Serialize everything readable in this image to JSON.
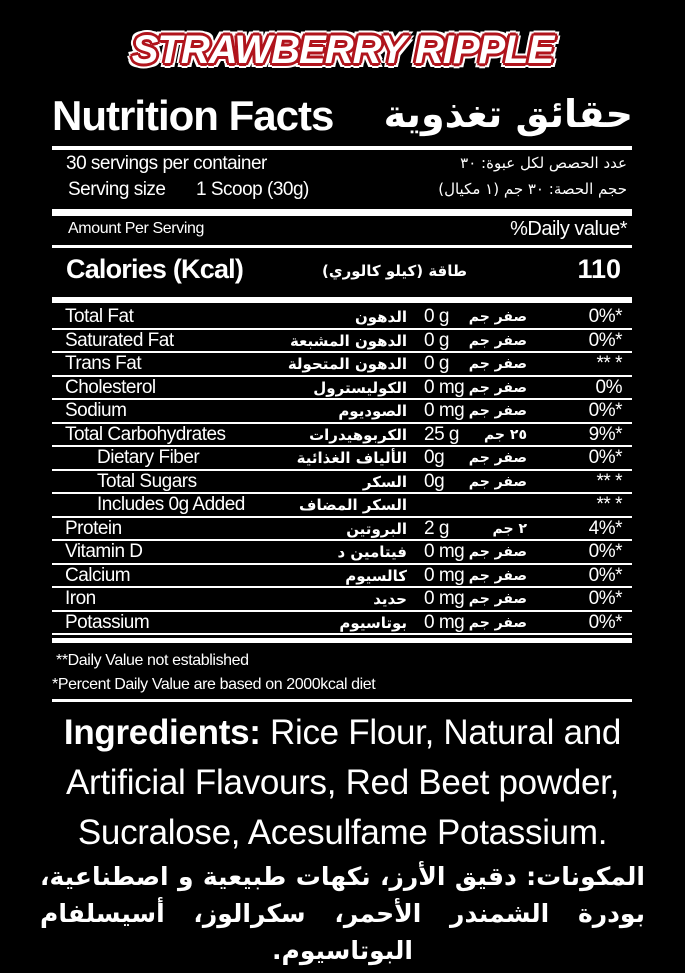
{
  "header": {
    "product": "STRAWBERRY RIPPLE",
    "title_en": "Nutrition Facts",
    "title_ar": "حقائق تغذوية"
  },
  "serving": {
    "per_container_en": "30 servings per container",
    "per_container_ar": "عدد الحصص لكل عبوة: ٣٠",
    "size_label_en": "Serving size",
    "size_value_en": "1 Scoop (30g)",
    "size_ar": "حجم الحصة: ٣٠ جم (١ مكيال)"
  },
  "amount_per_serving": "Amount Per Serving",
  "daily_value_header": "%Daily value*",
  "calories": {
    "label_en": "Calories (Kcal)",
    "label_ar": "طاقة (كيلو كالوري)",
    "value": "110"
  },
  "nutrients": [
    {
      "en": "Total Fat",
      "ar": "الدهون",
      "amount": "0 g",
      "amount_ar": "صفر جم",
      "dv": "0%*",
      "indent": 0
    },
    {
      "en": "Saturated Fat",
      "ar": "الدهون المشبعة",
      "amount": "0 g",
      "amount_ar": "صفر جم",
      "dv": "0%*",
      "indent": 0
    },
    {
      "en": "Trans Fat",
      "ar": "الدهون المتحولة",
      "amount": "0 g",
      "amount_ar": "صفر جم",
      "dv": "** *",
      "indent": 0
    },
    {
      "en": "Cholesterol",
      "ar": "الكوليسترول",
      "amount": "0 mg",
      "amount_ar": "صفر جم",
      "dv": "0%",
      "indent": 0
    },
    {
      "en": "Sodium",
      "ar": "الصوديوم",
      "amount": "0 mg",
      "amount_ar": "صفر جم",
      "dv": "0%*",
      "indent": 0
    },
    {
      "en": "Total Carbohydrates",
      "ar": "الكربوهيدرات",
      "amount": "25 g",
      "amount_ar": "٢٥ جم",
      "dv": "9%*",
      "indent": 0
    },
    {
      "en": "Dietary Fiber",
      "ar": "الألياف الغذائية",
      "amount": "0g",
      "amount_ar": "صفر جم",
      "dv": "0%*",
      "indent": 2
    },
    {
      "en": "Total Sugars",
      "ar": "السكر",
      "amount": "0g",
      "amount_ar": "صفر جم",
      "dv": "** *",
      "indent": 1
    },
    {
      "en": "Includes 0g Added",
      "ar": "السكر المضاف",
      "amount": "",
      "amount_ar": "",
      "dv": "** *",
      "indent": 1
    },
    {
      "en": "Protein",
      "ar": "البروتين",
      "amount": "2 g",
      "amount_ar": "٢ جم",
      "dv": "4%*",
      "indent": 0
    },
    {
      "en": "Vitamin D",
      "ar": "فيتامين د",
      "amount": "0 mg",
      "amount_ar": "صفر جم",
      "dv": "0%*",
      "indent": 0
    },
    {
      "en": "Calcium",
      "ar": "كالسيوم",
      "amount": "0 mg",
      "amount_ar": "صفر جم",
      "dv": "0%*",
      "indent": 0
    },
    {
      "en": "Iron",
      "ar": "حديد",
      "amount": "0 mg",
      "amount_ar": "صفر جم",
      "dv": "0%*",
      "indent": 0
    },
    {
      "en": "Potassium",
      "ar": "بوتاسيوم",
      "amount": "0 mg",
      "amount_ar": "صفر جم",
      "dv": "0%*",
      "indent": 0
    }
  ],
  "footnotes": [
    "**Daily Value not established",
    "*Percent Daily Value are based on 2000kcal diet"
  ],
  "ingredients": {
    "label_en": "Ingredients:",
    "text_en": " Rice Flour, Natural and Artificial Flavours, Red Beet powder, Sucralose,  Acesulfame Potassium.",
    "text_ar": "المكونات: دقيق الأرز، نكهات طبيعية و اصطناعية، بودرة الشمندر الأحمر، سكرالوز، أسيسلفام البوتاسيوم."
  },
  "colors": {
    "background": "#000000",
    "text": "#ffffff",
    "title_outline": "#b0141c"
  }
}
